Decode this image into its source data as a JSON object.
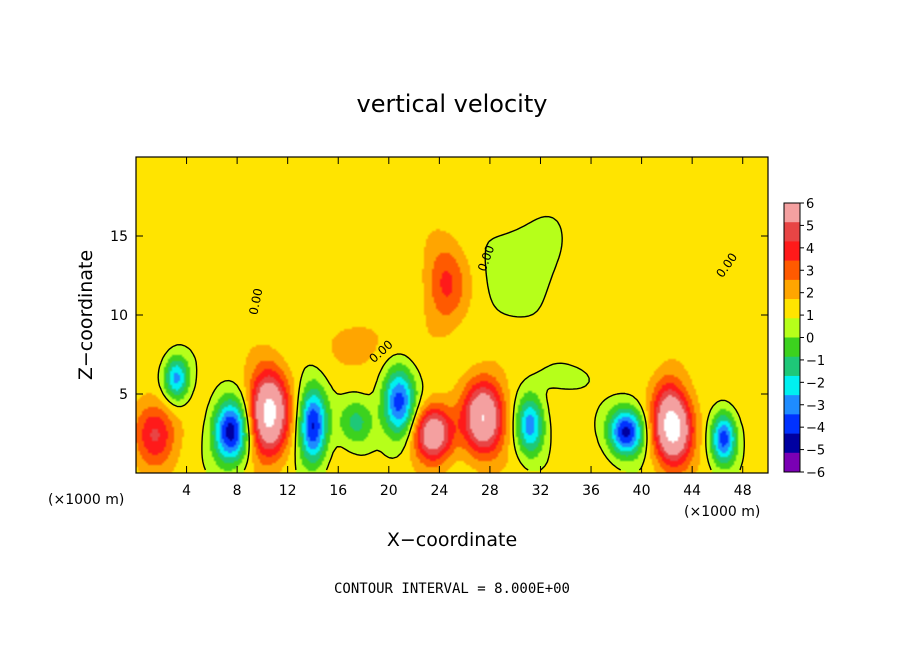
{
  "chart_data": {
    "type": "heatmap",
    "title": "vertical velocity",
    "xlabel": "X−coordinate",
    "ylabel": "Z−coordinate",
    "x_unit_label": "(×1000 m)",
    "x_unit_label_right": "(×1000 m)",
    "xlim": [
      0,
      50
    ],
    "ylim": [
      0,
      20
    ],
    "x_ticks": [
      4,
      8,
      12,
      16,
      20,
      24,
      28,
      32,
      36,
      40,
      44,
      48
    ],
    "x_tick_labels": [
      "4",
      "8",
      "12",
      "16",
      "20",
      "24",
      "28",
      "32",
      "36",
      "40",
      "44",
      "48"
    ],
    "y_ticks": [
      5,
      10,
      15
    ],
    "y_tick_labels": [
      "5",
      "10",
      "15"
    ],
    "footer": "CONTOUR INTERVAL = 8.000E+00",
    "contour_label": "0.00",
    "colorbar": {
      "ticks": [
        6,
        5,
        4,
        3,
        2,
        1,
        0,
        -1,
        -2,
        -3,
        -4,
        -5,
        -6
      ],
      "tick_labels": [
        "6",
        "5",
        "4",
        "3",
        "2",
        "1",
        "0",
        "−1",
        "−2",
        "−3",
        "−4",
        "−5",
        "−6"
      ],
      "colors": [
        "#f4a0a0",
        "#e84545",
        "#ff1a1a",
        "#ff5a00",
        "#ffa500",
        "#ffe400",
        "#b6ff1a",
        "#3cd21e",
        "#1ec878",
        "#00f0f0",
        "#1e8cff",
        "#0032ff",
        "#0000a0",
        "#7a00b4"
      ]
    },
    "blobs": [
      {
        "x": 3.2,
        "z": 6.0,
        "sx": 1.0,
        "sz": 1.4,
        "v": -4.8
      },
      {
        "x": 1.5,
        "z": 2.5,
        "sx": 1.6,
        "sz": 2.0,
        "v": 3.8
      },
      {
        "x": 7.5,
        "z": 2.6,
        "sx": 1.4,
        "sz": 2.0,
        "v": -7.0
      },
      {
        "x": 10.5,
        "z": 3.8,
        "sx": 1.5,
        "sz": 2.6,
        "v": 8.0
      },
      {
        "x": 14.0,
        "z": 3.0,
        "sx": 1.1,
        "sz": 2.4,
        "v": -6.5
      },
      {
        "x": 17.5,
        "z": 3.2,
        "sx": 1.4,
        "sz": 1.5,
        "v": -2.8
      },
      {
        "x": 20.8,
        "z": 4.5,
        "sx": 1.3,
        "sz": 2.2,
        "v": -6.0
      },
      {
        "x": 23.5,
        "z": 2.5,
        "sx": 1.5,
        "sz": 1.7,
        "v": 6.5
      },
      {
        "x": 27.5,
        "z": 3.5,
        "sx": 1.6,
        "sz": 2.3,
        "v": 7.0
      },
      {
        "x": 31.2,
        "z": 3.0,
        "sx": 1.1,
        "sz": 1.9,
        "v": -5.0
      },
      {
        "x": 38.8,
        "z": 2.6,
        "sx": 1.4,
        "sz": 1.5,
        "v": -6.8
      },
      {
        "x": 42.5,
        "z": 2.8,
        "sx": 1.5,
        "sz": 2.2,
        "v": 8.0
      },
      {
        "x": 46.5,
        "z": 2.2,
        "sx": 1.0,
        "sz": 1.6,
        "v": -6.0
      },
      {
        "x": 24.5,
        "z": 12.0,
        "sx": 1.6,
        "sz": 2.6,
        "v": 2.8
      },
      {
        "x": 30.5,
        "z": 13.0,
        "sx": 3.0,
        "sz": 3.0,
        "v": -1.3
      },
      {
        "x": 34.0,
        "z": 6.0,
        "sx": 2.0,
        "sz": 0.8,
        "v": -1.1
      },
      {
        "x": 42.0,
        "z": 4.8,
        "sx": 1.2,
        "sz": 2.0,
        "v": 1.5
      },
      {
        "x": 18.5,
        "z": 8.0,
        "sx": 3.0,
        "sz": 2.0,
        "v": 0.9
      }
    ]
  }
}
